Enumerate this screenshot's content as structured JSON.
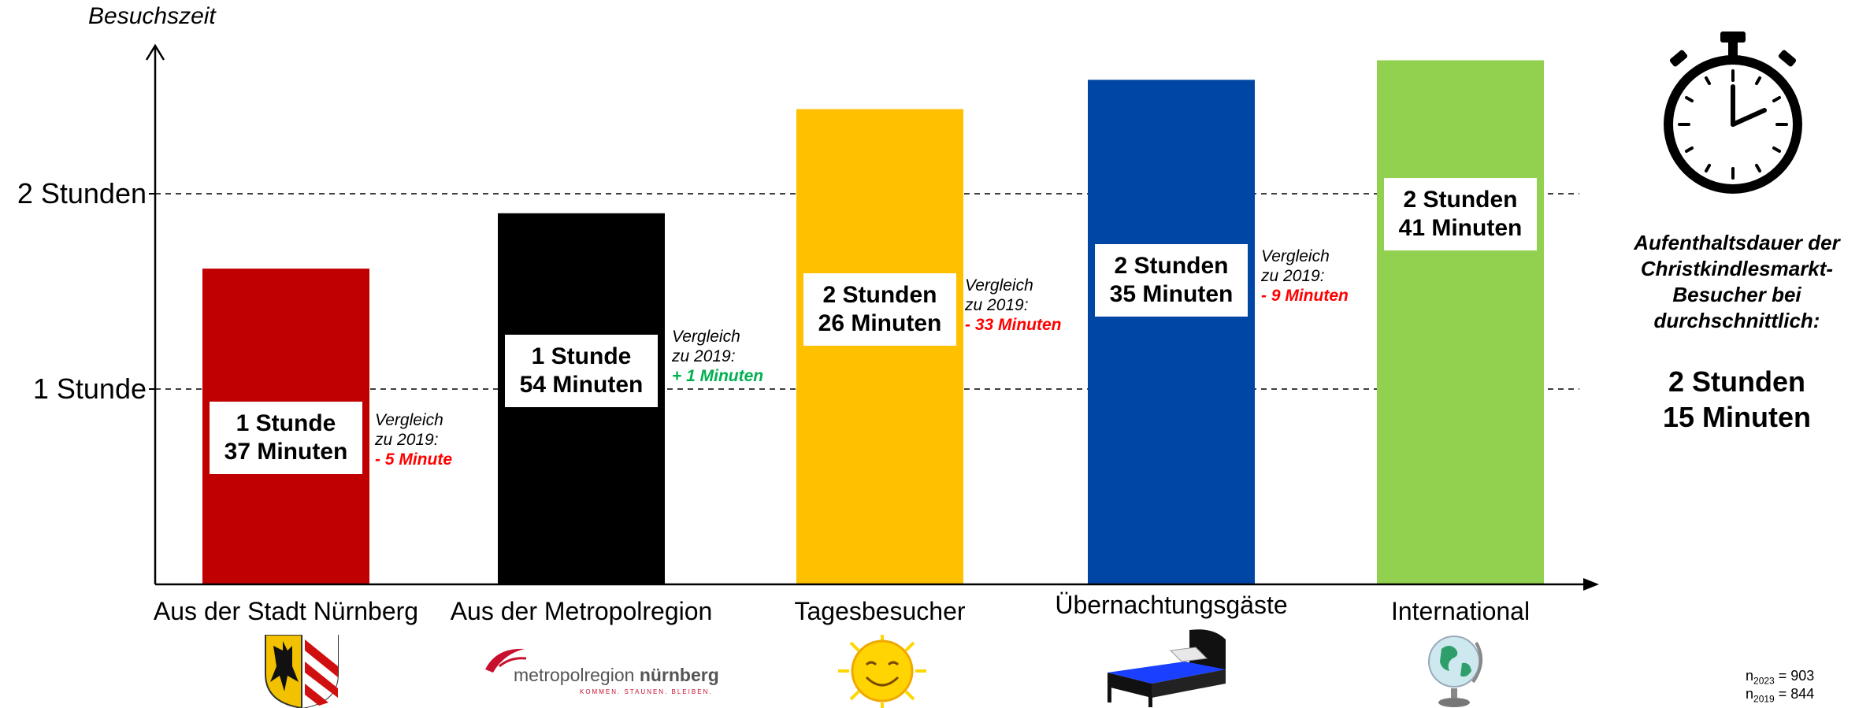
{
  "chart_data": {
    "type": "bar",
    "ylabel": "Besuchszeit",
    "yticks": [
      {
        "value": 60,
        "label": "1 Stunde"
      },
      {
        "value": 120,
        "label": "2 Stunden"
      }
    ],
    "ylim": [
      0,
      170
    ],
    "grid": "dashed lines at 1 Stunde and 2 Stunden",
    "categories": [
      "Aus der Stadt Nürnberg",
      "Aus der Metropolregion",
      "Tagesbesucher",
      "Übernachtungsgäste",
      "International"
    ],
    "values": [
      97,
      114,
      146,
      155,
      161
    ],
    "value_labels": [
      {
        "line1": "1 Stunde",
        "line2": "37 Minuten"
      },
      {
        "line1": "1 Stunde",
        "line2": "54 Minuten"
      },
      {
        "line1": "2 Stunden",
        "line2": "26 Minuten"
      },
      {
        "line1": "2 Stunden",
        "line2": "35 Minuten"
      },
      {
        "line1": "2 Stunden",
        "line2": "41 Minuten"
      }
    ],
    "colors": [
      "#c00000",
      "#000000",
      "#ffc000",
      "#0046a5",
      "#92d050"
    ],
    "comparisons": [
      {
        "line1": "Vergleich",
        "line2": "zu 2019:",
        "delta": "- 5 Minute",
        "color": "#ff0000"
      },
      {
        "line1": "Vergleich",
        "line2": "zu 2019:",
        "delta": "+ 1 Minuten",
        "color": "#00b050"
      },
      {
        "line1": "Vergleich",
        "line2": "zu 2019:",
        "delta": "- 33 Minuten",
        "color": "#ff0000"
      },
      {
        "line1": "Vergleich",
        "line2": "zu 2019:",
        "delta": "- 9 Minuten",
        "color": "#ff0000"
      }
    ]
  },
  "summary": {
    "line1": "Aufenthaltsdauer der",
    "line2": "Christkindlesmarkt-",
    "line3": "Besucher bei",
    "line4": "durchschnittlich:",
    "value1": "2 Stunden",
    "value2": "15 Minuten"
  },
  "sample": {
    "n2023_base": "n",
    "n2023_sub": "2023",
    "n2023_val": " = 903",
    "n2019_base": "n",
    "n2019_sub": "2019",
    "n2019_val": " = 844"
  },
  "logos": {
    "metropol_text": "metropolregion",
    "metropol_bold": "nürnberg",
    "metropol_tagline": "KOMMEN. STAUNEN. BLEIBEN."
  },
  "icons": [
    "stopwatch-icon",
    "coat-of-arms-icon",
    "metropolregion-logo",
    "sun-icon",
    "bed-icon",
    "globe-icon"
  ]
}
